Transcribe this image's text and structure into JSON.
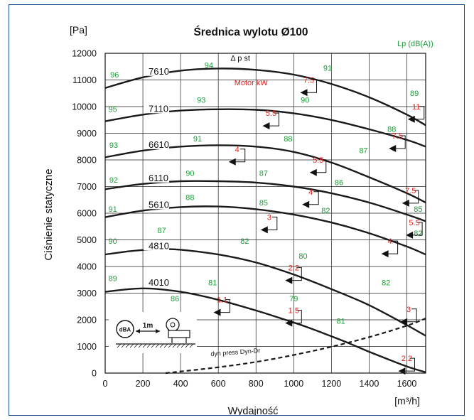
{
  "chart_data": {
    "type": "line",
    "title": "Średnica wylotu Ø100",
    "ylabel": "Ciśnienie statyczne",
    "xlabel": "Wydajność",
    "yunit": "[Pa]",
    "xunit": "[m³/h]",
    "lp_label": "Lp (dB(A))",
    "dp_label": "Δ p st",
    "motor_label": "Motor  kW",
    "dyn_label": "dyn press   Dyn-Dr",
    "dba_label": "dBA",
    "distance_label": "1m",
    "xlim": [
      0,
      1700
    ],
    "ylim": [
      0,
      12000
    ],
    "xticks": [
      0,
      200,
      400,
      600,
      800,
      1000,
      1200,
      1400,
      1600
    ],
    "yticks": [
      0,
      1000,
      2000,
      3000,
      4000,
      5000,
      6000,
      7000,
      8000,
      9000,
      10000,
      11000,
      12000
    ],
    "grid": true,
    "colors": {
      "curve": "#1a1a1a",
      "sound": "#1f9d3a",
      "motor": "#e0201b",
      "frame": "#1f4e8c"
    },
    "series": [
      {
        "name": "7610",
        "x": [
          0,
          200,
          400,
          600,
          800,
          1000,
          1200,
          1400,
          1600,
          1700
        ],
        "y": [
          10700,
          11100,
          11350,
          11430,
          11380,
          11200,
          10850,
          10350,
          9700,
          9300
        ]
      },
      {
        "name": "7110",
        "x": [
          0,
          200,
          400,
          600,
          800,
          1000,
          1200,
          1400,
          1600,
          1700
        ],
        "y": [
          9450,
          9700,
          9850,
          9900,
          9880,
          9750,
          9500,
          9150,
          8750,
          8500
        ]
      },
      {
        "name": "6610",
        "x": [
          0,
          200,
          400,
          600,
          800,
          1000,
          1200,
          1400,
          1600,
          1700
        ],
        "y": [
          8100,
          8350,
          8500,
          8550,
          8500,
          8300,
          7900,
          7350,
          6750,
          6400
        ]
      },
      {
        "name": "6110",
        "x": [
          0,
          200,
          400,
          600,
          800,
          1000,
          1200,
          1400,
          1600,
          1700
        ],
        "y": [
          6900,
          7100,
          7200,
          7200,
          7150,
          7000,
          6750,
          6400,
          5950,
          5700
        ]
      },
      {
        "name": "5610",
        "x": [
          0,
          200,
          400,
          600,
          800,
          1000,
          1200,
          1400,
          1600,
          1700
        ],
        "y": [
          5850,
          6100,
          6230,
          6250,
          6150,
          5950,
          5650,
          5250,
          4750,
          4450
        ]
      },
      {
        "name": "4810",
        "x": [
          0,
          100,
          200,
          300,
          400,
          600,
          800,
          1000,
          1200,
          1400,
          1600,
          1700
        ],
        "y": [
          4450,
          4550,
          4620,
          4650,
          4630,
          4450,
          4150,
          3700,
          3150,
          2550,
          1800,
          1400
        ]
      },
      {
        "name": "4010",
        "x": [
          0,
          200,
          400,
          600,
          800,
          1000,
          1100,
          1200,
          1300,
          1400,
          1500,
          1600,
          1700
        ],
        "y": [
          3050,
          3180,
          3050,
          2750,
          2350,
          1900,
          1650,
          1380,
          1100,
          800,
          520,
          250,
          30
        ]
      }
    ],
    "dynamic_pressure": {
      "name": "dyn press   Dyn-Dr",
      "x": [
        320,
        600,
        800,
        1000,
        1200,
        1400,
        1600,
        1700
      ],
      "y": [
        0,
        220,
        420,
        680,
        990,
        1350,
        1780,
        2050
      ]
    },
    "sound_levels": [
      {
        "x": 50,
        "y": 11100,
        "label": "96"
      },
      {
        "x": 550,
        "y": 11450,
        "label": "94"
      },
      {
        "x": 1180,
        "y": 11350,
        "label": "91"
      },
      {
        "x": 1640,
        "y": 10400,
        "label": "89"
      },
      {
        "x": 40,
        "y": 9800,
        "label": "95"
      },
      {
        "x": 510,
        "y": 10150,
        "label": "93"
      },
      {
        "x": 1060,
        "y": 10150,
        "label": "90"
      },
      {
        "x": 1520,
        "y": 9050,
        "label": "88"
      },
      {
        "x": 45,
        "y": 8450,
        "label": "93"
      },
      {
        "x": 490,
        "y": 8700,
        "label": "91"
      },
      {
        "x": 970,
        "y": 8700,
        "label": "88"
      },
      {
        "x": 1370,
        "y": 8250,
        "label": "87"
      },
      {
        "x": 45,
        "y": 7150,
        "label": "92"
      },
      {
        "x": 450,
        "y": 7400,
        "label": "90"
      },
      {
        "x": 840,
        "y": 7400,
        "label": "87"
      },
      {
        "x": 1240,
        "y": 7050,
        "label": "86"
      },
      {
        "x": 40,
        "y": 6050,
        "label": "91"
      },
      {
        "x": 450,
        "y": 6500,
        "label": "88"
      },
      {
        "x": 840,
        "y": 6300,
        "label": "85"
      },
      {
        "x": 1170,
        "y": 6000,
        "label": "82"
      },
      {
        "x": 1660,
        "y": 6050,
        "label": "85"
      },
      {
        "x": 40,
        "y": 4850,
        "label": "90"
      },
      {
        "x": 300,
        "y": 5250,
        "label": "87"
      },
      {
        "x": 740,
        "y": 4850,
        "label": "82"
      },
      {
        "x": 1050,
        "y": 4300,
        "label": "80"
      },
      {
        "x": 1660,
        "y": 5150,
        "label": "82"
      },
      {
        "x": 1490,
        "y": 3300,
        "label": "82"
      },
      {
        "x": 40,
        "y": 3450,
        "label": "89"
      },
      {
        "x": 370,
        "y": 2700,
        "label": "86"
      },
      {
        "x": 570,
        "y": 3300,
        "label": "81"
      },
      {
        "x": 1000,
        "y": 2700,
        "label": "79"
      },
      {
        "x": 1250,
        "y": 1850,
        "label": "81"
      }
    ],
    "motor_power": [
      {
        "x": 1080,
        "y": 10900,
        "label": "7.5"
      },
      {
        "x": 880,
        "y": 9650,
        "label": "5.5"
      },
      {
        "x": 700,
        "y": 8300,
        "label": "4"
      },
      {
        "x": 1130,
        "y": 7900,
        "label": "5.5"
      },
      {
        "x": 1550,
        "y": 8800,
        "label": "7.5"
      },
      {
        "x": 1650,
        "y": 9900,
        "label": "11"
      },
      {
        "x": 1090,
        "y": 6700,
        "label": "4"
      },
      {
        "x": 1620,
        "y": 6750,
        "label": "7.5"
      },
      {
        "x": 870,
        "y": 5750,
        "label": "3"
      },
      {
        "x": 1640,
        "y": 5550,
        "label": "5.5"
      },
      {
        "x": 1510,
        "y": 4850,
        "label": "4"
      },
      {
        "x": 1000,
        "y": 3850,
        "label": "2.2"
      },
      {
        "x": 620,
        "y": 2650,
        "label": "1.1"
      },
      {
        "x": 1000,
        "y": 2250,
        "label": "1.5"
      },
      {
        "x": 1610,
        "y": 2300,
        "label": "3"
      },
      {
        "x": 1600,
        "y": 450,
        "label": "2.2"
      }
    ]
  }
}
